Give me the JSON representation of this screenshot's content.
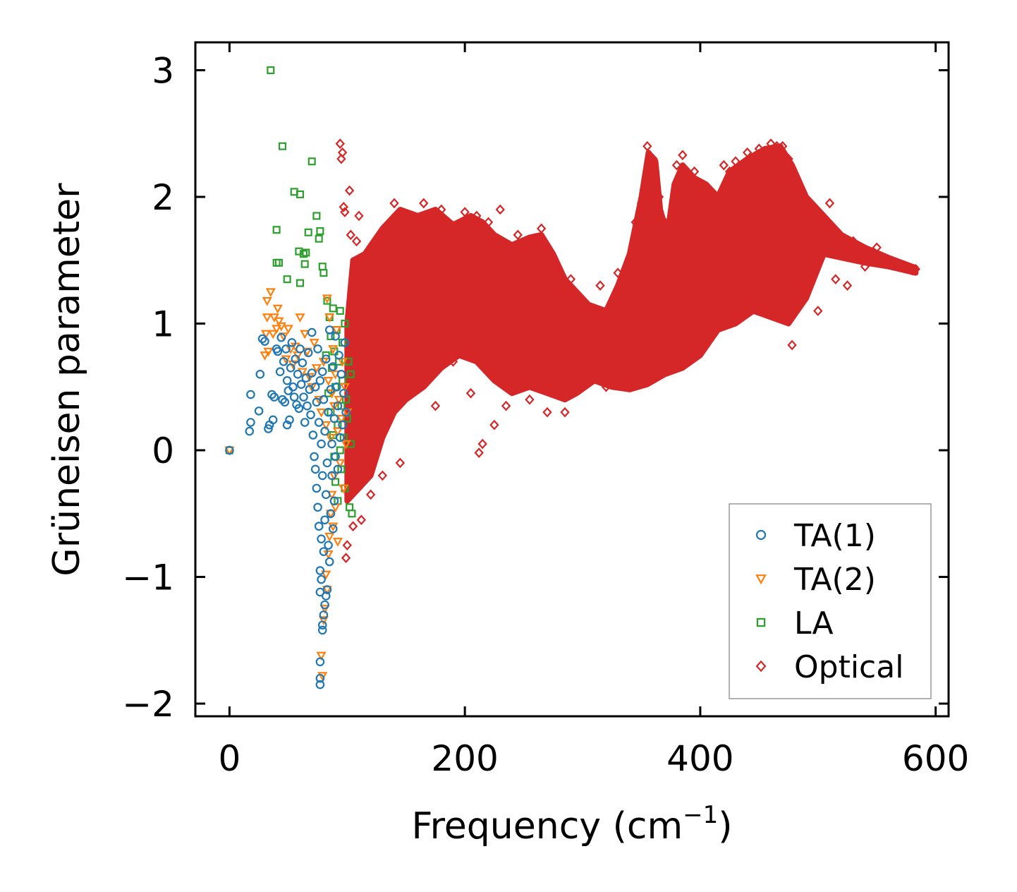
{
  "chart_data": {
    "type": "scatter",
    "title": "",
    "xlabel": "Frequency (cm",
    "xlabel_sup": "−1",
    "xlabel_end": ")",
    "ylabel": "Grüneisen parameter",
    "xlim": [
      -29,
      611
    ],
    "ylim": [
      -2.1,
      3.22
    ],
    "xticks": [
      0,
      200,
      400,
      600
    ],
    "xtick_labels": [
      "0",
      "200",
      "400",
      "600"
    ],
    "yticks": [
      -2,
      -1,
      0,
      1,
      2,
      3
    ],
    "ytick_labels": [
      "−2",
      "−1",
      "0",
      "1",
      "2",
      "3"
    ],
    "grid": false,
    "legend_position": "bottom-right",
    "series": [
      {
        "name": "TA(1)",
        "label": "TA(1)",
        "marker": "circle",
        "color": "#1f77b4",
        "points": [
          [
            0,
            0
          ],
          [
            17,
            0.15
          ],
          [
            18,
            0.22
          ],
          [
            18,
            0.44
          ],
          [
            25,
            0.31
          ],
          [
            26,
            0.6
          ],
          [
            28,
            0.88
          ],
          [
            30,
            0.86
          ],
          [
            33,
            0.17
          ],
          [
            34,
            0.2
          ],
          [
            36,
            0.44
          ],
          [
            37,
            0.24
          ],
          [
            38,
            0.42
          ],
          [
            40,
            0.8
          ],
          [
            41,
            0.78
          ],
          [
            43,
            0.62
          ],
          [
            44,
            0.89
          ],
          [
            45,
            0.4
          ],
          [
            46,
            0.7
          ],
          [
            47,
            0.38
          ],
          [
            48,
            0.8
          ],
          [
            49,
            0.55
          ],
          [
            49,
            0.2
          ],
          [
            50,
            0.47
          ],
          [
            51,
            0.24
          ],
          [
            52,
            0.65
          ],
          [
            53,
            0.85
          ],
          [
            54,
            0.5
          ],
          [
            55,
            0.42
          ],
          [
            56,
            0.72
          ],
          [
            57,
            0.36
          ],
          [
            58,
            0.6
          ],
          [
            59,
            0.33
          ],
          [
            60,
            0.8
          ],
          [
            61,
            0.52
          ],
          [
            62,
            0.69
          ],
          [
            63,
            0.42
          ],
          [
            64,
            0.22
          ],
          [
            65,
            0.57
          ],
          [
            66,
            0.35
          ],
          [
            67,
            0.77
          ],
          [
            68,
            0.48
          ],
          [
            69,
            0.28
          ],
          [
            70,
            0.93
          ],
          [
            70,
            0.61
          ],
          [
            71,
            0.12
          ],
          [
            72,
            -0.05
          ],
          [
            73,
            0.5
          ],
          [
            73,
            -0.15
          ],
          [
            74,
            -0.3
          ],
          [
            74,
            0.38
          ],
          [
            75,
            -0.45
          ],
          [
            75,
            0.8
          ],
          [
            76,
            -0.6
          ],
          [
            76,
            0.22
          ],
          [
            77,
            -0.95
          ],
          [
            77,
            -1.12
          ],
          [
            77,
            0.55
          ],
          [
            77,
            -1.67
          ],
          [
            77,
            -1.8
          ],
          [
            77,
            -1.85
          ],
          [
            78,
            -1.02
          ],
          [
            78,
            -0.7
          ],
          [
            78,
            0.05
          ],
          [
            79,
            -1.42
          ],
          [
            79,
            -1.38
          ],
          [
            79,
            -0.2
          ],
          [
            79,
            0.62
          ],
          [
            80,
            -1.3
          ],
          [
            80,
            -0.8
          ],
          [
            80,
            0.4
          ],
          [
            81,
            -1.22
          ],
          [
            81,
            -0.55
          ],
          [
            81,
            0.15
          ],
          [
            82,
            -1.15
          ],
          [
            82,
            -0.35
          ],
          [
            82,
            0.72
          ],
          [
            83,
            -1.1
          ],
          [
            83,
            -0.1
          ],
          [
            84,
            -0.75
          ],
          [
            84,
            0.3
          ],
          [
            85,
            -0.88
          ],
          [
            85,
            0.95
          ],
          [
            86,
            -0.5
          ],
          [
            86,
            0.48
          ],
          [
            87,
            -0.2
          ],
          [
            87,
            0.05
          ],
          [
            88,
            -0.62
          ],
          [
            88,
            0.66
          ],
          [
            89,
            0.25
          ],
          [
            89,
            -0.4
          ],
          [
            90,
            0.9
          ],
          [
            90,
            -0.05
          ],
          [
            91,
            0.5
          ],
          [
            92,
            -0.15
          ],
          [
            92,
            0.35
          ],
          [
            93,
            0.75
          ],
          [
            94,
            0.1
          ],
          [
            95,
            0.6
          ],
          [
            96,
            0.2
          ],
          [
            97,
            0.45
          ],
          [
            98,
            0.85
          ],
          [
            99,
            0.3
          ]
        ]
      },
      {
        "name": "TA(2)",
        "label": "TA(2)",
        "marker": "triangle-down",
        "color": "#ff7f0e",
        "points": [
          [
            0,
            0
          ],
          [
            30,
            0.75
          ],
          [
            31,
            0.92
          ],
          [
            32,
            1.05
          ],
          [
            32,
            1.18
          ],
          [
            33,
            0.78
          ],
          [
            35,
            1.25
          ],
          [
            37,
            0.92
          ],
          [
            38,
            1.05
          ],
          [
            40,
            0.96
          ],
          [
            41,
            1.12
          ],
          [
            42,
            1.02
          ],
          [
            44,
            0.98
          ],
          [
            46,
            0.9
          ],
          [
            48,
            0.72
          ],
          [
            50,
            0.96
          ],
          [
            52,
            0.8
          ],
          [
            54,
            0.68
          ],
          [
            56,
            0.82
          ],
          [
            58,
            0.75
          ],
          [
            60,
            1.05
          ],
          [
            62,
            0.62
          ],
          [
            64,
            0.92
          ],
          [
            66,
            0.78
          ],
          [
            68,
            0.58
          ],
          [
            70,
            0.5
          ],
          [
            72,
            0.85
          ],
          [
            74,
            0.65
          ],
          [
            76,
            0.4
          ],
          [
            78,
            0.3
          ],
          [
            78,
            -1.62
          ],
          [
            79,
            -1.78
          ],
          [
            80,
            0.7
          ],
          [
            80,
            -1.34
          ],
          [
            81,
            -1.25
          ],
          [
            82,
            0.2
          ],
          [
            82,
            -0.98
          ],
          [
            83,
            1.2
          ],
          [
            83,
            -1.1
          ],
          [
            84,
            0.55
          ],
          [
            84,
            -0.82
          ],
          [
            85,
            1.05
          ],
          [
            85,
            -0.68
          ],
          [
            86,
            0.1
          ],
          [
            86,
            -0.5
          ],
          [
            87,
            0.45
          ],
          [
            87,
            -0.35
          ],
          [
            88,
            0.8
          ],
          [
            88,
            -0.6
          ],
          [
            89,
            -0.2
          ],
          [
            89,
            0.35
          ],
          [
            90,
            0.6
          ],
          [
            90,
            -0.45
          ],
          [
            91,
            0.95
          ],
          [
            92,
            0.15
          ],
          [
            92,
            -0.72
          ],
          [
            93,
            0.4
          ],
          [
            94,
            -0.1
          ],
          [
            95,
            0.25
          ],
          [
            96,
            0.7
          ],
          [
            97,
            -0.3
          ],
          [
            98,
            0.5
          ],
          [
            99,
            0.05
          ],
          [
            100,
            0.3
          ]
        ]
      },
      {
        "name": "LA",
        "label": "LA",
        "marker": "square",
        "color": "#2ca02c",
        "points": [
          [
            0,
            0
          ],
          [
            35,
            3
          ],
          [
            40,
            1.74
          ],
          [
            40,
            1.48
          ],
          [
            42,
            1.48
          ],
          [
            45,
            2.4
          ],
          [
            49,
            1.35
          ],
          [
            55,
            2.04
          ],
          [
            59,
            1.57
          ],
          [
            60,
            1.32
          ],
          [
            60,
            2.02
          ],
          [
            63,
            1.55
          ],
          [
            64,
            1.47
          ],
          [
            65,
            1.56
          ],
          [
            67,
            1.72
          ],
          [
            70,
            2.28
          ],
          [
            74,
            1.85
          ],
          [
            76,
            1.67
          ],
          [
            77,
            1.73
          ],
          [
            79,
            1.45
          ],
          [
            80,
            1.4
          ],
          [
            82,
            0.75
          ],
          [
            83,
            1.18
          ],
          [
            84,
            0.45
          ],
          [
            85,
            1.05
          ],
          [
            86,
            0.9
          ],
          [
            86,
            0.3
          ],
          [
            87,
            0.65
          ],
          [
            88,
            0.12
          ],
          [
            88,
            1.12
          ],
          [
            89,
            -0.05
          ],
          [
            89,
            0.78
          ],
          [
            90,
            0.5
          ],
          [
            90,
            -0.25
          ],
          [
            91,
            0.95
          ],
          [
            92,
            0.2
          ],
          [
            92,
            -0.4
          ],
          [
            93,
            0.7
          ],
          [
            94,
            1.1
          ],
          [
            94,
            0
          ],
          [
            95,
            0.35
          ],
          [
            95,
            -0.15
          ],
          [
            96,
            0.85
          ],
          [
            96,
            0.55
          ],
          [
            97,
            0.1
          ],
          [
            98,
            1.0
          ],
          [
            98,
            -0.3
          ],
          [
            99,
            0.4
          ],
          [
            100,
            0.25
          ],
          [
            101,
            0.7
          ],
          [
            102,
            -0.45
          ],
          [
            103,
            0.6
          ],
          [
            103,
            0.05
          ],
          [
            104,
            -0.5
          ]
        ]
      },
      {
        "name": "Optical",
        "label": "Optical",
        "marker": "diamond",
        "color": "#d62728",
        "points": [
          [
            94,
            2.42
          ],
          [
            95,
            2.3
          ],
          [
            96,
            2.35
          ],
          [
            97,
            1.92
          ],
          [
            98,
            1.88
          ],
          [
            99,
            -0.85
          ],
          [
            100,
            -0.75
          ],
          [
            102,
            2.05
          ],
          [
            103,
            1.7
          ],
          [
            105,
            -0.6
          ],
          [
            108,
            1.65
          ],
          [
            110,
            1.85
          ],
          [
            112,
            -0.55
          ],
          [
            115,
            1.5
          ],
          [
            120,
            -0.35
          ],
          [
            125,
            1.62
          ],
          [
            130,
            -0.2
          ],
          [
            140,
            1.95
          ],
          [
            145,
            -0.1
          ],
          [
            155,
            1.85
          ],
          [
            165,
            1.95
          ],
          [
            175,
            0.35
          ],
          [
            180,
            1.9
          ],
          [
            190,
            0.7
          ],
          [
            200,
            1.88
          ],
          [
            205,
            0.45
          ],
          [
            210,
            1.85
          ],
          [
            212,
            -0.02
          ],
          [
            215,
            0.05
          ],
          [
            220,
            1.8
          ],
          [
            225,
            0.2
          ],
          [
            230,
            1.9
          ],
          [
            235,
            0.35
          ],
          [
            245,
            1.7
          ],
          [
            255,
            0.4
          ],
          [
            265,
            1.75
          ],
          [
            270,
            0.3
          ],
          [
            280,
            1.4
          ],
          [
            285,
            0.3
          ],
          [
            290,
            1.35
          ],
          [
            300,
            0.6
          ],
          [
            315,
            1.3
          ],
          [
            320,
            0.5
          ],
          [
            330,
            1.4
          ],
          [
            340,
            0.6
          ],
          [
            345,
            1.8
          ],
          [
            350,
            1.95
          ],
          [
            355,
            2.4
          ],
          [
            360,
            2.3
          ],
          [
            365,
            2.0
          ],
          [
            370,
            1.8
          ],
          [
            375,
            0.75
          ],
          [
            380,
            2.25
          ],
          [
            385,
            2.33
          ],
          [
            395,
            2.2
          ],
          [
            400,
            2.0
          ],
          [
            410,
            1.1
          ],
          [
            420,
            2.25
          ],
          [
            425,
            2.2
          ],
          [
            430,
            2.28
          ],
          [
            440,
            2.35
          ],
          [
            450,
            2.38
          ],
          [
            460,
            2.42
          ],
          [
            465,
            2.4
          ],
          [
            470,
            2.4
          ],
          [
            475,
            2.3
          ],
          [
            478,
            0.83
          ],
          [
            485,
            2.05
          ],
          [
            495,
            1.85
          ],
          [
            500,
            1.1
          ],
          [
            505,
            1.7
          ],
          [
            510,
            1.95
          ],
          [
            515,
            1.35
          ],
          [
            520,
            1.6
          ],
          [
            525,
            1.3
          ],
          [
            530,
            1.65
          ],
          [
            540,
            1.45
          ],
          [
            550,
            1.6
          ],
          [
            560,
            1.5
          ],
          [
            570,
            1.45
          ],
          [
            580,
            1.42
          ],
          [
            583,
            1.43
          ]
        ]
      }
    ]
  }
}
